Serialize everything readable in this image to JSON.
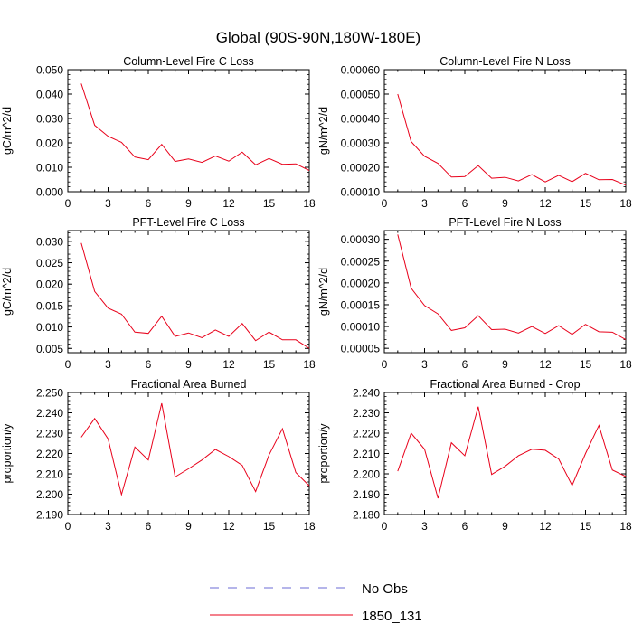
{
  "figure": {
    "title": "Global (90S-90N,180W-180E)"
  },
  "legend": {
    "entries": [
      {
        "label": "No Obs",
        "color": "#6b6bd6",
        "style": "dashed"
      },
      {
        "label": "1850_131",
        "color": "#e8001a",
        "style": "solid"
      }
    ]
  },
  "chart_data": [
    {
      "type": "line",
      "title": "Column-Level Fire C Loss",
      "ylabel": "gC/m^2/d",
      "xlabel": "",
      "x": [
        1,
        2,
        3,
        4,
        5,
        6,
        7,
        8,
        9,
        10,
        11,
        12,
        13,
        14,
        15,
        16,
        17,
        18
      ],
      "xlim": [
        0,
        18
      ],
      "ylim": [
        0.0,
        0.05
      ],
      "xticks": [
        0,
        3,
        6,
        9,
        12,
        15,
        18
      ],
      "yticks": [
        0.0,
        0.01,
        0.02,
        0.03,
        0.04,
        0.05
      ],
      "ytick_labels": [
        "0.000",
        "0.010",
        "0.020",
        "0.030",
        "0.040",
        "0.050"
      ],
      "series": [
        {
          "name": "1850_131",
          "color": "#e8001a",
          "values": [
            0.0443,
            0.0272,
            0.0227,
            0.0202,
            0.0142,
            0.0131,
            0.0194,
            0.0124,
            0.0134,
            0.012,
            0.0146,
            0.0125,
            0.0162,
            0.011,
            0.0136,
            0.0112,
            0.0114,
            0.0087
          ]
        }
      ]
    },
    {
      "type": "line",
      "title": "Column-Level Fire N Loss",
      "ylabel": "gN/m^2/d",
      "xlabel": "",
      "x": [
        1,
        2,
        3,
        4,
        5,
        6,
        7,
        8,
        9,
        10,
        11,
        12,
        13,
        14,
        15,
        16,
        17,
        18
      ],
      "xlim": [
        0,
        18
      ],
      "ylim": [
        0.0001,
        0.0006
      ],
      "xticks": [
        0,
        3,
        6,
        9,
        12,
        15,
        18
      ],
      "yticks": [
        0.0001,
        0.0002,
        0.0003,
        0.0004,
        0.0005,
        0.0006
      ],
      "ytick_labels": [
        "0.00010",
        "0.00020",
        "0.00030",
        "0.00040",
        "0.00050",
        "0.00060"
      ],
      "series": [
        {
          "name": "1850_131",
          "color": "#e8001a",
          "values": [
            0.0005,
            0.000305,
            0.000245,
            0.000216,
            0.00016,
            0.000162,
            0.000207,
            0.000155,
            0.000159,
            0.000144,
            0.00017,
            0.00014,
            0.000167,
            0.000141,
            0.000175,
            0.000149,
            0.00015,
            0.000127
          ]
        }
      ]
    },
    {
      "type": "line",
      "title": "PFT-Level Fire C Loss",
      "ylabel": "gC/m^2/d",
      "xlabel": "",
      "x": [
        1,
        2,
        3,
        4,
        5,
        6,
        7,
        8,
        9,
        10,
        11,
        12,
        13,
        14,
        15,
        16,
        17,
        18
      ],
      "xlim": [
        0,
        18
      ],
      "ylim": [
        0.004,
        0.0325
      ],
      "xticks": [
        0,
        3,
        6,
        9,
        12,
        15,
        18
      ],
      "yticks": [
        0.005,
        0.01,
        0.015,
        0.02,
        0.025,
        0.03
      ],
      "ytick_labels": [
        "0.005",
        "0.010",
        "0.015",
        "0.020",
        "0.025",
        "0.030"
      ],
      "series": [
        {
          "name": "1850_131",
          "color": "#e8001a",
          "values": [
            0.0296,
            0.0183,
            0.0144,
            0.013,
            0.0088,
            0.0085,
            0.0125,
            0.0078,
            0.0086,
            0.0075,
            0.0093,
            0.0078,
            0.0108,
            0.0068,
            0.0088,
            0.007,
            0.007,
            0.005
          ]
        }
      ]
    },
    {
      "type": "line",
      "title": "PFT-Level Fire N Loss",
      "ylabel": "gN/m^2/d",
      "xlabel": "",
      "x": [
        1,
        2,
        3,
        4,
        5,
        6,
        7,
        8,
        9,
        10,
        11,
        12,
        13,
        14,
        15,
        16,
        17,
        18
      ],
      "xlim": [
        0,
        18
      ],
      "ylim": [
        4e-05,
        0.00032
      ],
      "xticks": [
        0,
        3,
        6,
        9,
        12,
        15,
        18
      ],
      "yticks": [
        5e-05,
        0.0001,
        0.00015,
        0.0002,
        0.00025,
        0.0003
      ],
      "ytick_labels": [
        "0.00005",
        "0.00010",
        "0.00015",
        "0.00020",
        "0.00025",
        "0.00030"
      ],
      "series": [
        {
          "name": "1850_131",
          "color": "#e8001a",
          "values": [
            0.000311,
            0.000188,
            0.000148,
            0.000129,
            9.1e-05,
            9.7e-05,
            0.000125,
            9.3e-05,
            9.4e-05,
            8.5e-05,
            0.0001,
            8.4e-05,
            0.000102,
            8.2e-05,
            0.000105,
            8.8e-05,
            8.7e-05,
            7e-05
          ]
        }
      ]
    },
    {
      "type": "line",
      "title": "Fractional Area Burned",
      "ylabel": "proportion/y",
      "xlabel": "",
      "x": [
        1,
        2,
        3,
        4,
        5,
        6,
        7,
        8,
        9,
        10,
        11,
        12,
        13,
        14,
        15,
        16,
        17,
        18
      ],
      "xlim": [
        0,
        18
      ],
      "ylim": [
        2.19,
        2.25
      ],
      "xticks": [
        0,
        3,
        6,
        9,
        12,
        15,
        18
      ],
      "yticks": [
        2.19,
        2.2,
        2.21,
        2.22,
        2.23,
        2.24,
        2.25
      ],
      "ytick_labels": [
        "2.190",
        "2.200",
        "2.210",
        "2.220",
        "2.230",
        "2.240",
        "2.250"
      ],
      "series": [
        {
          "name": "1850_131",
          "color": "#e8001a",
          "values": [
            2.228,
            2.2372,
            2.2272,
            2.1998,
            2.2232,
            2.2168,
            2.2447,
            2.2085,
            2.2125,
            2.2168,
            2.222,
            2.2185,
            2.2142,
            2.2013,
            2.2193,
            2.2322,
            2.2106,
            2.2041
          ]
        }
      ]
    },
    {
      "type": "line",
      "title": "Fractional Area Burned - Crop",
      "ylabel": "proportion/y",
      "xlabel": "",
      "x": [
        1,
        2,
        3,
        4,
        5,
        6,
        7,
        8,
        9,
        10,
        11,
        12,
        13,
        14,
        15,
        16,
        17,
        18
      ],
      "xlim": [
        0,
        18
      ],
      "ylim": [
        2.18,
        2.24
      ],
      "xticks": [
        0,
        3,
        6,
        9,
        12,
        15,
        18
      ],
      "yticks": [
        2.18,
        2.19,
        2.2,
        2.21,
        2.22,
        2.23,
        2.24
      ],
      "ytick_labels": [
        "2.180",
        "2.190",
        "2.200",
        "2.210",
        "2.220",
        "2.230",
        "2.240"
      ],
      "series": [
        {
          "name": "1850_131",
          "color": "#e8001a",
          "values": [
            2.2013,
            2.22,
            2.2121,
            2.188,
            2.2153,
            2.2089,
            2.233,
            2.1997,
            2.2037,
            2.2089,
            2.2121,
            2.2116,
            2.2073,
            2.1943,
            2.21,
            2.2238,
            2.2019,
            2.1987
          ]
        }
      ]
    }
  ]
}
